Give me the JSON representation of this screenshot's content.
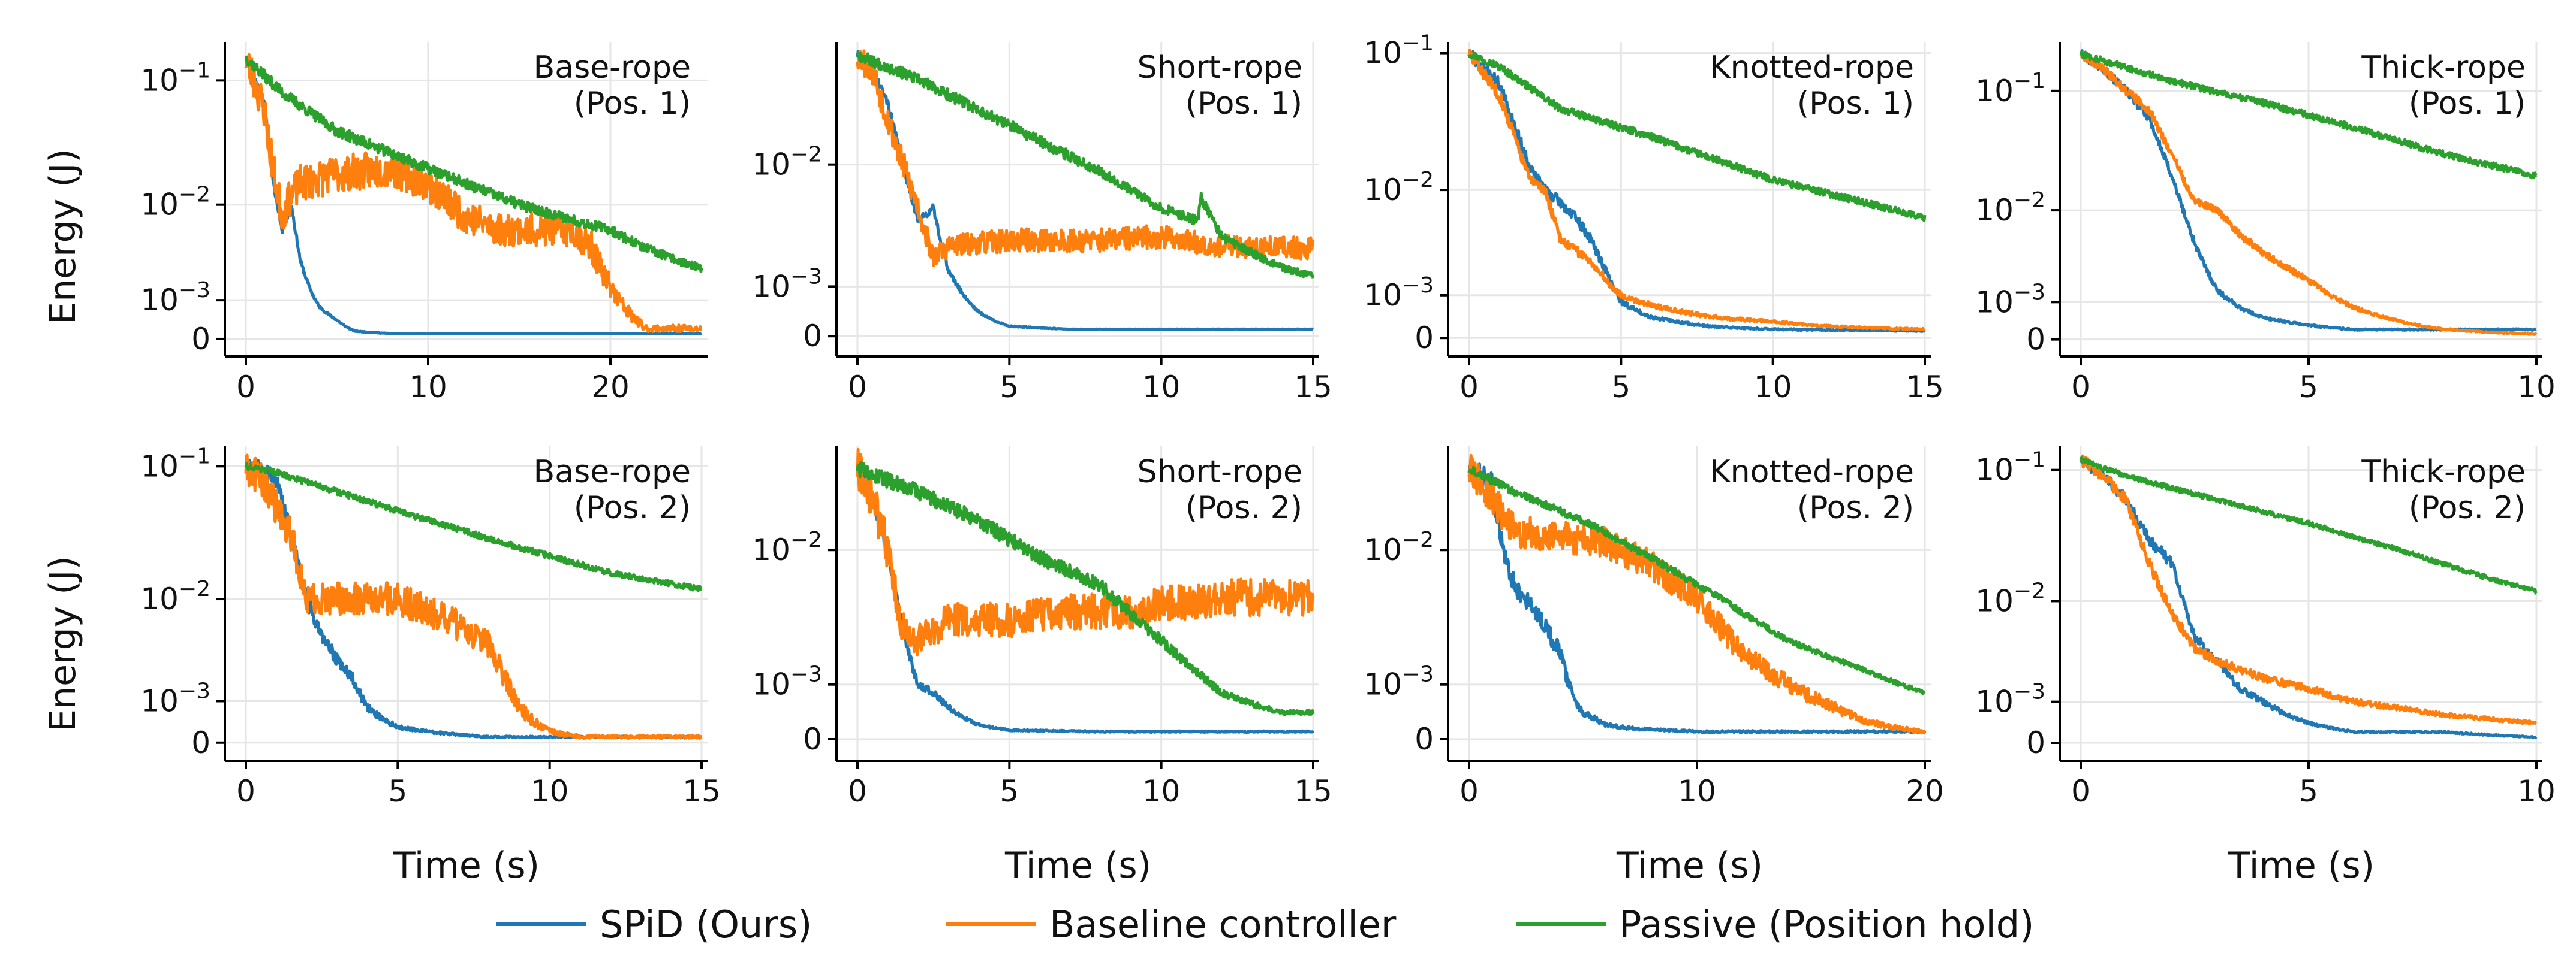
{
  "figure": {
    "ylabel": "Energy (J)",
    "xlabel": "Time (s)",
    "legend": [
      {
        "label": "SPiD (Ours)",
        "color": "#1f77b4"
      },
      {
        "label": "Baseline controller",
        "color": "#ff7f0e"
      },
      {
        "label": "Passive (Position hold)",
        "color": "#2ca02c"
      }
    ]
  },
  "chart_data": [
    {
      "type": "line",
      "title": "Base-rope",
      "subtitle": "(Pos. 1)",
      "yscale": "symlog",
      "xlim": [
        0,
        25
      ],
      "xticks": [
        0,
        10,
        20
      ],
      "ylim": [
        -0.0002,
        0.2
      ],
      "yticks": [
        0,
        0.001,
        0.01,
        0.1
      ],
      "ytick_labels": [
        "0",
        "10^-3",
        "10^-2",
        "10^-1"
      ],
      "series": [
        {
          "name": "SPiD (Ours)",
          "color": "#1f77b4",
          "noise": 0.06,
          "seed": 11,
          "x": [
            0,
            1,
            1.5,
            2,
            2.5,
            3,
            3.5,
            4,
            5,
            6,
            8,
            10,
            15,
            20,
            25
          ],
          "y": [
            0.15,
            0.07,
            0.015,
            0.006,
            0.01,
            0.003,
            0.0015,
            0.0008,
            0.0004,
            0.00015,
            0.0001,
            0.0001,
            0.0001,
            0.0001,
            0.0001
          ]
        },
        {
          "name": "Baseline controller",
          "color": "#ff7f0e",
          "noise": 0.35,
          "seed": 23,
          "x": [
            0,
            1,
            1.5,
            2,
            2.5,
            3,
            5,
            8,
            10,
            12,
            14,
            16,
            18,
            19,
            20,
            21,
            22,
            25
          ],
          "y": [
            0.15,
            0.06,
            0.02,
            0.008,
            0.012,
            0.015,
            0.018,
            0.02,
            0.015,
            0.008,
            0.006,
            0.006,
            0.006,
            0.004,
            0.0015,
            0.0006,
            0.0002,
            0.0002
          ]
        },
        {
          "name": "Passive (Position hold)",
          "color": "#2ca02c",
          "noise": 0.1,
          "seed": 37,
          "x": [
            0,
            2,
            5,
            10,
            15,
            20,
            22,
            25
          ],
          "y": [
            0.15,
            0.08,
            0.04,
            0.02,
            0.01,
            0.006,
            0.004,
            0.0025
          ]
        }
      ]
    },
    {
      "type": "line",
      "title": "Short-rope",
      "subtitle": "(Pos. 1)",
      "yscale": "symlog",
      "xlim": [
        0,
        15
      ],
      "xticks": [
        0,
        5,
        10,
        15
      ],
      "ylim": [
        -0.0002,
        0.06
      ],
      "yticks": [
        0,
        0.001,
        0.01
      ],
      "ytick_labels": [
        "0",
        "10^-3",
        "10^-2"
      ],
      "series": [
        {
          "name": "SPiD (Ours)",
          "color": "#1f77b4",
          "noise": 0.06,
          "seed": 41,
          "x": [
            0,
            0.5,
            1,
            1.5,
            2,
            2.5,
            3,
            4,
            5,
            7,
            10,
            15
          ],
          "y": [
            0.05,
            0.04,
            0.025,
            0.01,
            0.004,
            0.005,
            0.0015,
            0.0004,
            0.00015,
            0.0001,
            0.0001,
            0.0001
          ]
        },
        {
          "name": "Baseline controller",
          "color": "#ff7f0e",
          "noise": 0.22,
          "seed": 53,
          "x": [
            0,
            0.5,
            1,
            1.5,
            2,
            2.5,
            3,
            5,
            8,
            10,
            12,
            15
          ],
          "y": [
            0.05,
            0.04,
            0.02,
            0.01,
            0.005,
            0.002,
            0.0025,
            0.0028,
            0.0028,
            0.003,
            0.0025,
            0.0024
          ]
        },
        {
          "name": "Passive (Position hold)",
          "color": "#2ca02c",
          "noise": 0.08,
          "seed": 67,
          "x": [
            0,
            2,
            5,
            8,
            10,
            11.2,
            11.3,
            12,
            14,
            15
          ],
          "y": [
            0.05,
            0.035,
            0.018,
            0.009,
            0.005,
            0.004,
            0.006,
            0.003,
            0.0016,
            0.0013
          ]
        }
      ]
    },
    {
      "type": "line",
      "title": "Knotted-rope",
      "subtitle": "(Pos. 1)",
      "yscale": "symlog",
      "xlim": [
        0,
        15
      ],
      "xticks": [
        0,
        5,
        10,
        15
      ],
      "ylim": [
        -0.0002,
        0.12
      ],
      "yticks": [
        0,
        0.001,
        0.01,
        0.1
      ],
      "ytick_labels": [
        "0",
        "10^-3",
        "10^-2",
        "10^-1"
      ],
      "series": [
        {
          "name": "SPiD (Ours)",
          "color": "#1f77b4",
          "noise": 0.1,
          "seed": 71,
          "x": [
            0,
            1,
            1.5,
            2,
            2.5,
            3,
            3.5,
            4,
            4.5,
            5,
            6,
            8,
            10,
            15
          ],
          "y": [
            0.1,
            0.06,
            0.03,
            0.015,
            0.01,
            0.008,
            0.006,
            0.004,
            0.002,
            0.0008,
            0.0004,
            0.0002,
            0.00015,
            0.00012
          ]
        },
        {
          "name": "Baseline controller",
          "color": "#ff7f0e",
          "noise": 0.1,
          "seed": 83,
          "x": [
            0,
            1,
            1.5,
            2,
            2.5,
            3,
            4,
            5,
            6,
            8,
            10,
            12,
            15
          ],
          "y": [
            0.1,
            0.05,
            0.025,
            0.012,
            0.01,
            0.004,
            0.0025,
            0.001,
            0.0007,
            0.0004,
            0.0003,
            0.0002,
            0.00015
          ]
        },
        {
          "name": "Passive (Position hold)",
          "color": "#2ca02c",
          "noise": 0.06,
          "seed": 97,
          "x": [
            0,
            1,
            3,
            6,
            10,
            13,
            15
          ],
          "y": [
            0.1,
            0.08,
            0.04,
            0.025,
            0.012,
            0.008,
            0.006
          ]
        }
      ]
    },
    {
      "type": "line",
      "title": "Thick-rope",
      "subtitle": "(Pos. 1)",
      "yscale": "symlog",
      "xlim": [
        0,
        10
      ],
      "xticks": [
        0,
        5,
        10
      ],
      "ylim": [
        -0.0002,
        0.25
      ],
      "yticks": [
        0,
        0.001,
        0.01,
        0.1
      ],
      "ytick_labels": [
        "0",
        "10^-3",
        "10^-2",
        "10^-1"
      ],
      "series": [
        {
          "name": "SPiD (Ours)",
          "color": "#1f77b4",
          "noise": 0.08,
          "seed": 101,
          "x": [
            0,
            0.5,
            1,
            1.5,
            2,
            2.5,
            3,
            3.5,
            4,
            5,
            6,
            7,
            8,
            10
          ],
          "y": [
            0.2,
            0.15,
            0.1,
            0.06,
            0.02,
            0.005,
            0.0015,
            0.0008,
            0.0005,
            0.0003,
            0.0002,
            0.0002,
            0.0002,
            0.0002
          ]
        },
        {
          "name": "Baseline controller",
          "color": "#ff7f0e",
          "noise": 0.08,
          "seed": 113,
          "x": [
            0,
            0.5,
            1,
            1.5,
            2,
            2.5,
            3,
            3.5,
            4,
            5,
            6,
            7,
            8,
            10
          ],
          "y": [
            0.2,
            0.15,
            0.1,
            0.07,
            0.03,
            0.012,
            0.01,
            0.006,
            0.004,
            0.002,
            0.0008,
            0.0004,
            0.0002,
            0.0001
          ]
        },
        {
          "name": "Passive (Position hold)",
          "color": "#2ca02c",
          "noise": 0.06,
          "seed": 127,
          "x": [
            0,
            2,
            4,
            6,
            8,
            10
          ],
          "y": [
            0.2,
            0.12,
            0.08,
            0.05,
            0.03,
            0.02
          ]
        }
      ]
    },
    {
      "type": "line",
      "title": "Base-rope",
      "subtitle": "(Pos. 2)",
      "yscale": "symlog",
      "xlim": [
        0,
        15
      ],
      "xticks": [
        0,
        5,
        10,
        15
      ],
      "ylim": [
        -0.0002,
        0.14
      ],
      "yticks": [
        0,
        0.001,
        0.01,
        0.1
      ],
      "ytick_labels": [
        "0",
        "10^-3",
        "10^-2",
        "10^-1"
      ],
      "series": [
        {
          "name": "SPiD (Ours)",
          "color": "#1f77b4",
          "noise": 0.15,
          "seed": 131,
          "x": [
            0,
            0.5,
            1,
            1.5,
            2,
            2.5,
            3,
            3.5,
            4,
            5,
            6,
            8,
            10,
            15
          ],
          "y": [
            0.1,
            0.1,
            0.08,
            0.03,
            0.01,
            0.005,
            0.003,
            0.002,
            0.0008,
            0.0003,
            0.0002,
            0.0001,
            0.0001,
            0.0001
          ]
        },
        {
          "name": "Baseline controller",
          "color": "#ff7f0e",
          "noise": 0.3,
          "seed": 149,
          "x": [
            0,
            0.5,
            1,
            1.5,
            2,
            3,
            4,
            5,
            6,
            7,
            7.5,
            8,
            8.5,
            9,
            10,
            11,
            15
          ],
          "y": [
            0.1,
            0.08,
            0.05,
            0.03,
            0.01,
            0.01,
            0.01,
            0.01,
            0.008,
            0.006,
            0.005,
            0.004,
            0.002,
            0.0008,
            0.0002,
            0.0001,
            0.0001
          ]
        },
        {
          "name": "Passive (Position hold)",
          "color": "#2ca02c",
          "noise": 0.05,
          "seed": 151,
          "x": [
            0,
            1,
            3,
            6,
            9,
            12,
            15
          ],
          "y": [
            0.1,
            0.09,
            0.065,
            0.04,
            0.025,
            0.016,
            0.012
          ]
        }
      ]
    },
    {
      "type": "line",
      "title": "Short-rope",
      "subtitle": "(Pos. 2)",
      "yscale": "symlog",
      "xlim": [
        0,
        15
      ],
      "xticks": [
        0,
        5,
        10,
        15
      ],
      "ylim": [
        -0.0002,
        0.04
      ],
      "yticks": [
        0,
        0.001,
        0.01
      ],
      "ytick_labels": [
        "0",
        "10^-3",
        "10^-2"
      ],
      "series": [
        {
          "name": "SPiD (Ours)",
          "color": "#1f77b4",
          "noise": 0.1,
          "seed": 163,
          "x": [
            0,
            0.5,
            1,
            1.5,
            2,
            2.5,
            3,
            4,
            5,
            8,
            10,
            15
          ],
          "y": [
            0.03,
            0.02,
            0.01,
            0.003,
            0.001,
            0.0008,
            0.0005,
            0.0002,
            0.00012,
            0.0001,
            0.0001,
            0.0001
          ]
        },
        {
          "name": "Baseline controller",
          "color": "#ff7f0e",
          "noise": 0.28,
          "seed": 173,
          "x": [
            0,
            0.5,
            1,
            1.5,
            2,
            3,
            5,
            7,
            9,
            10,
            12,
            15
          ],
          "y": [
            0.03,
            0.02,
            0.01,
            0.003,
            0.0025,
            0.0035,
            0.0035,
            0.004,
            0.004,
            0.0045,
            0.005,
            0.005
          ]
        },
        {
          "name": "Passive (Position hold)",
          "color": "#2ca02c",
          "noise": 0.1,
          "seed": 181,
          "x": [
            0,
            2,
            4,
            6,
            8,
            10,
            11,
            12,
            14,
            15
          ],
          "y": [
            0.03,
            0.022,
            0.015,
            0.009,
            0.006,
            0.0025,
            0.0015,
            0.0008,
            0.0004,
            0.0004
          ]
        }
      ]
    },
    {
      "type": "line",
      "title": "Knotted-rope",
      "subtitle": "(Pos. 2)",
      "yscale": "symlog",
      "xlim": [
        0,
        20
      ],
      "xticks": [
        0,
        10,
        20
      ],
      "ylim": [
        -0.0002,
        0.04
      ],
      "yticks": [
        0,
        0.001,
        0.01
      ],
      "ytick_labels": [
        "0",
        "10^-3",
        "10^-2"
      ],
      "series": [
        {
          "name": "SPiD (Ours)",
          "color": "#1f77b4",
          "noise": 0.15,
          "seed": 191,
          "x": [
            0,
            1,
            1.5,
            2,
            3,
            4,
            4.5,
            5,
            5.5,
            6,
            7,
            10,
            15,
            20
          ],
          "y": [
            0.03,
            0.025,
            0.01,
            0.006,
            0.004,
            0.002,
            0.0008,
            0.0004,
            0.0003,
            0.0002,
            0.00015,
            0.0001,
            0.0001,
            0.0001
          ]
        },
        {
          "name": "Baseline controller",
          "color": "#ff7f0e",
          "noise": 0.22,
          "seed": 197,
          "x": [
            0,
            1,
            2,
            4,
            6,
            8,
            10,
            12,
            14,
            16,
            18,
            20
          ],
          "y": [
            0.03,
            0.02,
            0.013,
            0.012,
            0.011,
            0.008,
            0.005,
            0.002,
            0.001,
            0.0005,
            0.0002,
            0.0001
          ]
        },
        {
          "name": "Passive (Position hold)",
          "color": "#2ca02c",
          "noise": 0.05,
          "seed": 199,
          "x": [
            0,
            2,
            5,
            8,
            11,
            14,
            17,
            20
          ],
          "y": [
            0.03,
            0.022,
            0.015,
            0.009,
            0.005,
            0.0025,
            0.0015,
            0.0008
          ]
        }
      ]
    },
    {
      "type": "line",
      "title": "Thick-rope",
      "subtitle": "(Pos. 2)",
      "yscale": "symlog",
      "xlim": [
        0,
        10
      ],
      "xticks": [
        0,
        5,
        10
      ],
      "ylim": [
        -0.0002,
        0.15
      ],
      "yticks": [
        0,
        0.001,
        0.01,
        0.1
      ],
      "ytick_labels": [
        "0",
        "10^-3",
        "10^-2",
        "10^-1"
      ],
      "series": [
        {
          "name": "SPiD (Ours)",
          "color": "#1f77b4",
          "noise": 0.1,
          "seed": 211,
          "x": [
            0,
            0.5,
            1,
            1.5,
            2,
            2.5,
            3,
            3.5,
            4,
            5,
            6,
            8,
            10
          ],
          "y": [
            0.12,
            0.09,
            0.06,
            0.03,
            0.02,
            0.005,
            0.003,
            0.0015,
            0.001,
            0.0004,
            0.0002,
            0.0002,
            0.0001
          ]
        },
        {
          "name": "Baseline controller",
          "color": "#ff7f0e",
          "noise": 0.1,
          "seed": 223,
          "x": [
            0,
            0.5,
            1,
            1.5,
            2,
            2.5,
            3,
            4,
            5,
            6,
            7,
            8,
            10
          ],
          "y": [
            0.12,
            0.09,
            0.06,
            0.02,
            0.008,
            0.004,
            0.003,
            0.002,
            0.0015,
            0.001,
            0.0008,
            0.0006,
            0.0004
          ]
        },
        {
          "name": "Passive (Position hold)",
          "color": "#2ca02c",
          "noise": 0.04,
          "seed": 227,
          "x": [
            0,
            1,
            3,
            5,
            7,
            9,
            10
          ],
          "y": [
            0.12,
            0.09,
            0.06,
            0.04,
            0.025,
            0.015,
            0.012
          ]
        }
      ]
    }
  ]
}
